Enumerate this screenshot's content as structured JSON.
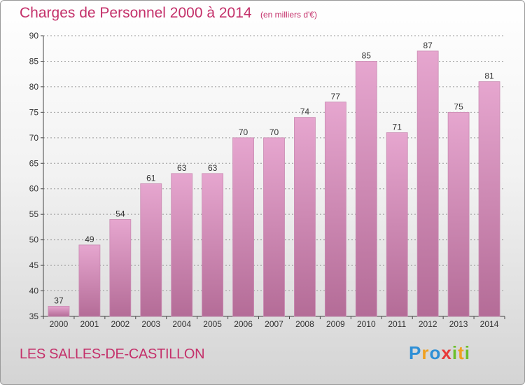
{
  "header": {
    "title": "Charges de Personnel 2000 à 2014",
    "subtitle": "(en milliers d'€)"
  },
  "footer": {
    "commune": "LES SALLES-DE-CASTILLON",
    "logo_letters": [
      {
        "ch": "P",
        "color": "#2e8fd6"
      },
      {
        "ch": "r",
        "color": "#f0a020"
      },
      {
        "ch": "o",
        "color": "#2e8fd6"
      },
      {
        "ch": "x",
        "color": "#e83a3a"
      },
      {
        "ch": "i",
        "color": "#6cbf2a"
      },
      {
        "ch": "t",
        "color": "#f0a020"
      },
      {
        "ch": "i",
        "color": "#6cbf2a"
      }
    ]
  },
  "colors": {
    "accent": "#c4306a",
    "bar_top": "#e6a6cf",
    "bar_bottom": "#b46c97"
  },
  "chart_data": {
    "type": "bar",
    "title": "Charges de Personnel 2000 à 2014",
    "subtitle": "(en milliers d'€)",
    "xlabel": "",
    "ylabel": "",
    "categories": [
      "2000",
      "2001",
      "2002",
      "2003",
      "2004",
      "2005",
      "2006",
      "2007",
      "2008",
      "2009",
      "2010",
      "2011",
      "2012",
      "2013",
      "2014"
    ],
    "values": [
      37,
      49,
      54,
      61,
      63,
      63,
      70,
      70,
      74,
      77,
      85,
      71,
      87,
      75,
      81
    ],
    "ylim": [
      35,
      90
    ],
    "yticks": [
      35,
      40,
      45,
      50,
      55,
      60,
      65,
      70,
      75,
      80,
      85,
      90
    ],
    "grid": true,
    "legend": "none"
  }
}
